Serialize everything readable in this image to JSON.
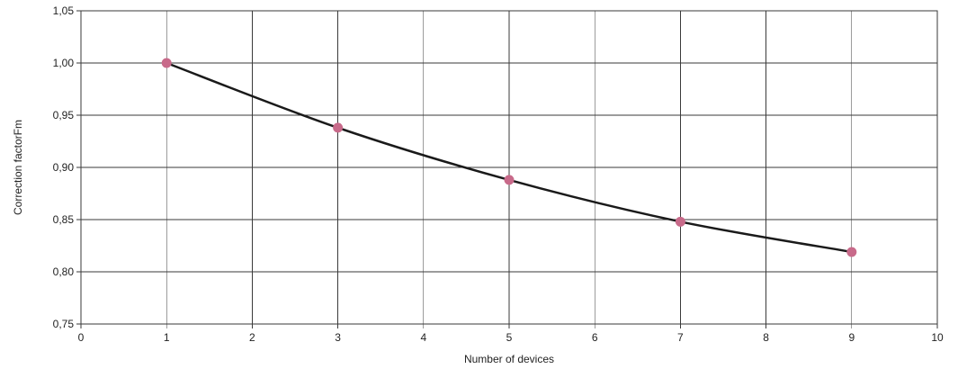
{
  "chart_data": {
    "type": "line",
    "title": "",
    "xlabel": "Number of devices",
    "ylabel": "Correction factorFm",
    "xlim": [
      0,
      10
    ],
    "ylim": [
      0.75,
      1.05
    ],
    "x_ticks": [
      0,
      1,
      2,
      3,
      4,
      5,
      6,
      7,
      8,
      9,
      10
    ],
    "x_tick_labels": [
      "0",
      "1",
      "2",
      "3",
      "4",
      "5",
      "6",
      "7",
      "8",
      "9",
      "10"
    ],
    "y_ticks": [
      0.75,
      0.8,
      0.85,
      0.9,
      0.95,
      1.0,
      1.05
    ],
    "y_tick_labels": [
      "0,75",
      "0,80",
      "0,85",
      "0,90",
      "0,95",
      "1,00",
      "1,05"
    ],
    "grid": true,
    "legend": "none",
    "series": [
      {
        "x": [
          1,
          3,
          5,
          7,
          9
        ],
        "y": [
          1.0,
          0.938,
          0.888,
          0.848,
          0.819
        ],
        "line_color": "#1a1a1a",
        "marker_color": "#c86a8a",
        "smooth": true
      }
    ]
  }
}
